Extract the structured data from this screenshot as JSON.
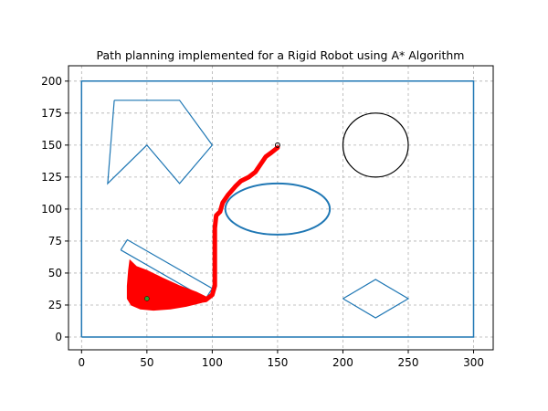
{
  "chart_data": {
    "type": "line",
    "title": "Path planning implemented for a Rigid Robot using A* Algorithm",
    "xlabel": "",
    "ylabel": "",
    "xlim": [
      -10,
      315
    ],
    "ylim": [
      -10,
      212
    ],
    "xticks": [
      0,
      50,
      100,
      150,
      200,
      250,
      300
    ],
    "yticks": [
      0,
      25,
      50,
      75,
      100,
      125,
      150,
      175,
      200
    ],
    "grid": true,
    "colors": {
      "obstacle": "#1f77b4",
      "path": "#ff0000",
      "explored": "#ff0000",
      "circle": "#000000",
      "start_marker": "#2ca02c",
      "goal_marker": "#000000"
    },
    "obstacles": {
      "boundary": [
        [
          0,
          0
        ],
        [
          300,
          0
        ],
        [
          300,
          200
        ],
        [
          0,
          200
        ],
        [
          0,
          0
        ]
      ],
      "polygon": [
        [
          25,
          185
        ],
        [
          75,
          185
        ],
        [
          100,
          150
        ],
        [
          75,
          120
        ],
        [
          50,
          150
        ],
        [
          20,
          120
        ],
        [
          25,
          185
        ]
      ],
      "rectangle": [
        [
          30,
          68
        ],
        [
          35,
          76
        ],
        [
          100,
          38
        ],
        [
          95,
          30
        ],
        [
          30,
          68
        ]
      ],
      "ellipse": {
        "cx": 150,
        "cy": 100,
        "rx": 40,
        "ry": 20
      },
      "circle": {
        "cx": 225,
        "cy": 150,
        "r": 25
      },
      "rhombus": [
        [
          200,
          30
        ],
        [
          225,
          45
        ],
        [
          250,
          30
        ],
        [
          225,
          15
        ],
        [
          200,
          30
        ]
      ]
    },
    "start": [
      50,
      30
    ],
    "goal": [
      150,
      150
    ],
    "explored_region": [
      [
        37,
        60
      ],
      [
        42,
        55
      ],
      [
        50,
        52
      ],
      [
        62,
        46
      ],
      [
        75,
        40
      ],
      [
        88,
        35
      ],
      [
        96,
        31
      ],
      [
        92,
        27
      ],
      [
        80,
        24
      ],
      [
        68,
        22
      ],
      [
        55,
        21
      ],
      [
        45,
        22
      ],
      [
        38,
        25
      ],
      [
        35,
        30
      ],
      [
        35,
        40
      ],
      [
        36,
        52
      ],
      [
        37,
        60
      ]
    ],
    "path": [
      [
        50,
        30
      ],
      [
        58,
        29
      ],
      [
        68,
        28
      ],
      [
        78,
        28
      ],
      [
        88,
        28
      ],
      [
        95,
        29
      ],
      [
        100,
        33
      ],
      [
        102,
        40
      ],
      [
        102,
        55
      ],
      [
        102,
        70
      ],
      [
        102,
        85
      ],
      [
        103,
        95
      ],
      [
        106,
        98
      ],
      [
        108,
        105
      ],
      [
        112,
        111
      ],
      [
        118,
        118
      ],
      [
        122,
        122
      ],
      [
        128,
        125
      ],
      [
        133,
        129
      ],
      [
        137,
        135
      ],
      [
        141,
        141
      ],
      [
        145,
        144
      ],
      [
        150,
        148
      ]
    ]
  }
}
